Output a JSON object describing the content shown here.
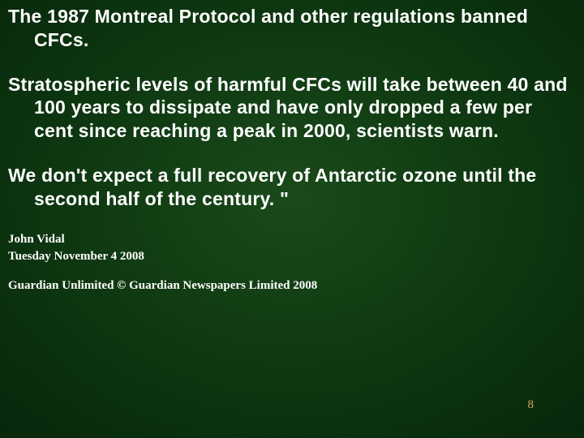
{
  "slide": {
    "background": {
      "gradient_center": "#1a4a1a",
      "gradient_mid": "#0d3510",
      "gradient_outer": "#052008",
      "gradient_edge": "#020f04"
    },
    "text_color": "#ffffff",
    "pagenum_color": "#d9a860",
    "body_font": "Comic Sans MS",
    "body_fontsize_pt": 18,
    "body_fontweight": 700,
    "meta_font": "Times New Roman",
    "meta_fontsize_pt": 11,
    "paragraphs": [
      "The 1987 Montreal Protocol and other regulations banned CFCs.",
      "Stratospheric levels of harmful CFCs will take between 40 and 100 years to dissipate and have only dropped a few per cent since reaching a peak in 2000, scientists warn.",
      "We don't expect a full recovery of Antarctic ozone until the second half of the century. \""
    ],
    "author": "John Vidal",
    "date": "Tuesday November 4 2008",
    "copyright": "Guardian Unlimited © Guardian Newspapers Limited 2008",
    "page_number": "8"
  }
}
